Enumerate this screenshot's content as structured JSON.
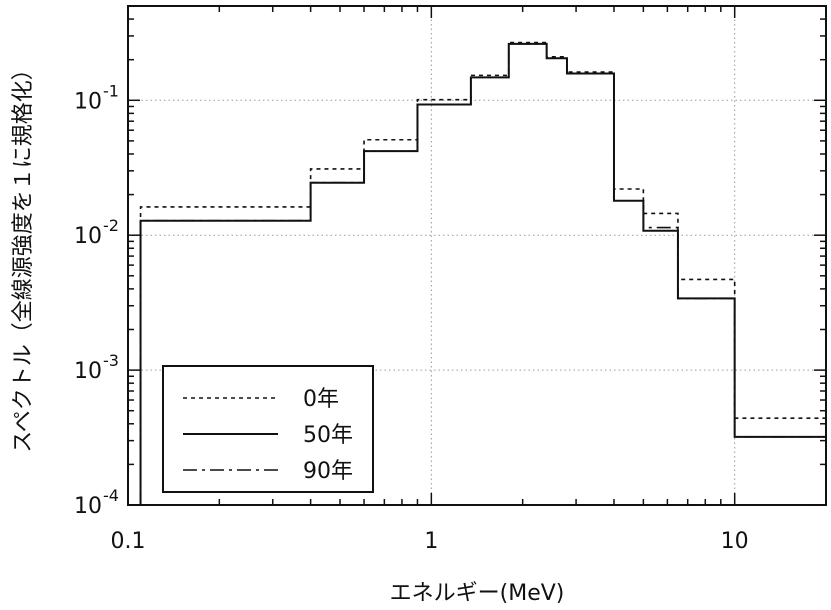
{
  "chart_data": {
    "type": "line",
    "chart_style": "step histogram",
    "title": "",
    "xlabel": "エネルギー(MeV)",
    "ylabel": "スペクトル（全線源強度を１に規格化）",
    "x_scale": "log",
    "y_scale": "log",
    "xlim": [
      0.1,
      20
    ],
    "ylim": [
      0.0001,
      0.5
    ],
    "grid": true,
    "x_ticks": [
      {
        "value": 0.1,
        "label": "0.1"
      },
      {
        "value": 1,
        "label": "1"
      },
      {
        "value": 10,
        "label": "10"
      }
    ],
    "y_ticks": [
      {
        "value": 0.0001,
        "base": "10",
        "exp": "-4"
      },
      {
        "value": 0.001,
        "base": "10",
        "exp": "-3"
      },
      {
        "value": 0.01,
        "base": "10",
        "exp": "-2"
      },
      {
        "value": 0.1,
        "base": "10",
        "exp": "-1"
      }
    ],
    "legend_position": "bottom-left",
    "bin_edges": [
      0.11,
      0.4,
      0.6,
      0.9,
      1.35,
      1.8,
      2.4,
      2.8,
      4.0,
      5.0,
      6.5,
      10.0,
      20.0
    ],
    "series": [
      {
        "name": "0年",
        "line_style": "dotted",
        "values": [
          0.0162,
          0.031,
          0.051,
          0.101,
          0.153,
          0.268,
          0.21,
          0.162,
          0.022,
          0.0145,
          0.0047,
          0.00044
        ]
      },
      {
        "name": "50年",
        "line_style": "solid",
        "values": [
          0.0128,
          0.0245,
          0.042,
          0.093,
          0.148,
          0.262,
          0.205,
          0.158,
          0.018,
          0.0108,
          0.0034,
          0.00032
        ]
      },
      {
        "name": "90年",
        "line_style": "dashdot",
        "values": [
          0.0128,
          0.0245,
          0.042,
          0.093,
          0.148,
          0.262,
          0.205,
          0.158,
          0.018,
          0.0114,
          0.0034,
          0.00032
        ]
      }
    ]
  },
  "colors": {
    "line": "#111111",
    "grid": "#9a9a9a",
    "background": "#ffffff"
  }
}
